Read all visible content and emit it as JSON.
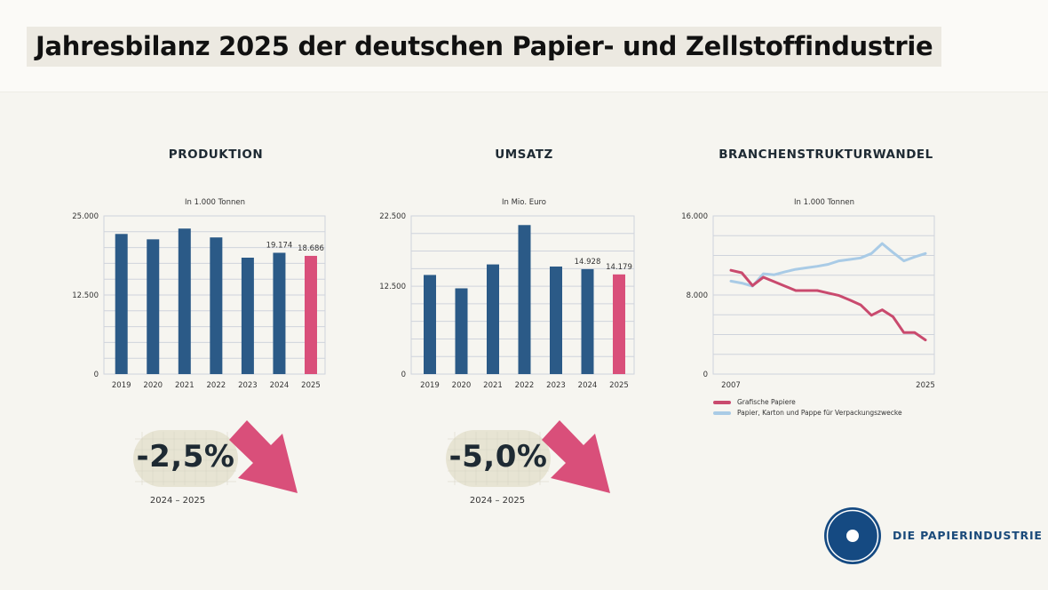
{
  "title": "Jahresbilanz 2025 der deutschen Papier- und Zellstoffindustrie",
  "colors": {
    "bar": "#2b5a87",
    "highlight": "#d94f7a",
    "line_red": "#c94a6e",
    "line_blue": "#a9cbe6",
    "logo": "#154a82",
    "grid": "#cfd3dc"
  },
  "chart_data": [
    {
      "type": "bar",
      "title": "PRODUKTION",
      "subtitle": "In 1.000 Tonnen",
      "categories": [
        "2019",
        "2020",
        "2021",
        "2022",
        "2023",
        "2024",
        "2025"
      ],
      "values": [
        22150,
        21300,
        23000,
        21600,
        18400,
        19174,
        18686
      ],
      "data_labels": {
        "5": "19.174",
        "6": "18.686"
      },
      "highlight_index": 6,
      "ylim": [
        0,
        25000
      ],
      "yticks": [
        0,
        12500,
        25000
      ],
      "ytick_labels": [
        "0",
        "12.500",
        "25.000"
      ],
      "grid_step": 2500,
      "grid": true
    },
    {
      "type": "bar",
      "title": "UMSATZ",
      "subtitle": "In Mio. Euro",
      "categories": [
        "2019",
        "2020",
        "2021",
        "2022",
        "2023",
        "2024",
        "2025"
      ],
      "values": [
        14100,
        12200,
        15600,
        21200,
        15300,
        14928,
        14179
      ],
      "data_labels": {
        "5": "14.928",
        "6": "14.179"
      },
      "highlight_index": 6,
      "ylim": [
        0,
        22500
      ],
      "yticks": [
        0,
        12500,
        22500
      ],
      "ytick_labels": [
        "0",
        "12.500",
        "22.500"
      ],
      "grid_step": 2500,
      "grid": true
    },
    {
      "type": "line",
      "title": "BRANCHENSTRUKTURWANDEL",
      "subtitle": "In 1.000 Tonnen",
      "x": [
        2007,
        2008,
        2009,
        2010,
        2011,
        2012,
        2013,
        2014,
        2015,
        2016,
        2017,
        2018,
        2019,
        2020,
        2021,
        2022,
        2023,
        2024,
        2025
      ],
      "xtick_labels": [
        "2007",
        "2025"
      ],
      "ylim": [
        0,
        16000
      ],
      "yticks": [
        0,
        8000,
        16000
      ],
      "ytick_labels": [
        "0",
        "8.000",
        "16.000"
      ],
      "grid_step": 2000,
      "grid": true,
      "legend_position": "bottom-left",
      "series": [
        {
          "name": "Grafische Papiere",
          "color": "#c94a6e",
          "values": [
            10500,
            10250,
            8950,
            9800,
            9350,
            8900,
            8450,
            8450,
            8450,
            8200,
            7950,
            7500,
            7000,
            5950,
            6500,
            5800,
            4200,
            4200,
            3450
          ]
        },
        {
          "name": "Papier, Karton und Pappe für Verpackungszwecke",
          "color": "#a9cbe6",
          "values": [
            9400,
            9200,
            8900,
            10150,
            10050,
            10350,
            10600,
            10750,
            10900,
            11100,
            11450,
            11600,
            11750,
            12200,
            13200,
            12300,
            11450,
            11850,
            12200
          ]
        }
      ]
    }
  ],
  "badges": [
    {
      "value": "-2,5%",
      "period": "2024 – 2025",
      "icon": "arrow-down-right-icon"
    },
    {
      "value": "-5,0%",
      "period": "2024 – 2025",
      "icon": "arrow-down-right-icon"
    }
  ],
  "logo": {
    "text": "DIE PAPIERINDUSTRIE"
  }
}
